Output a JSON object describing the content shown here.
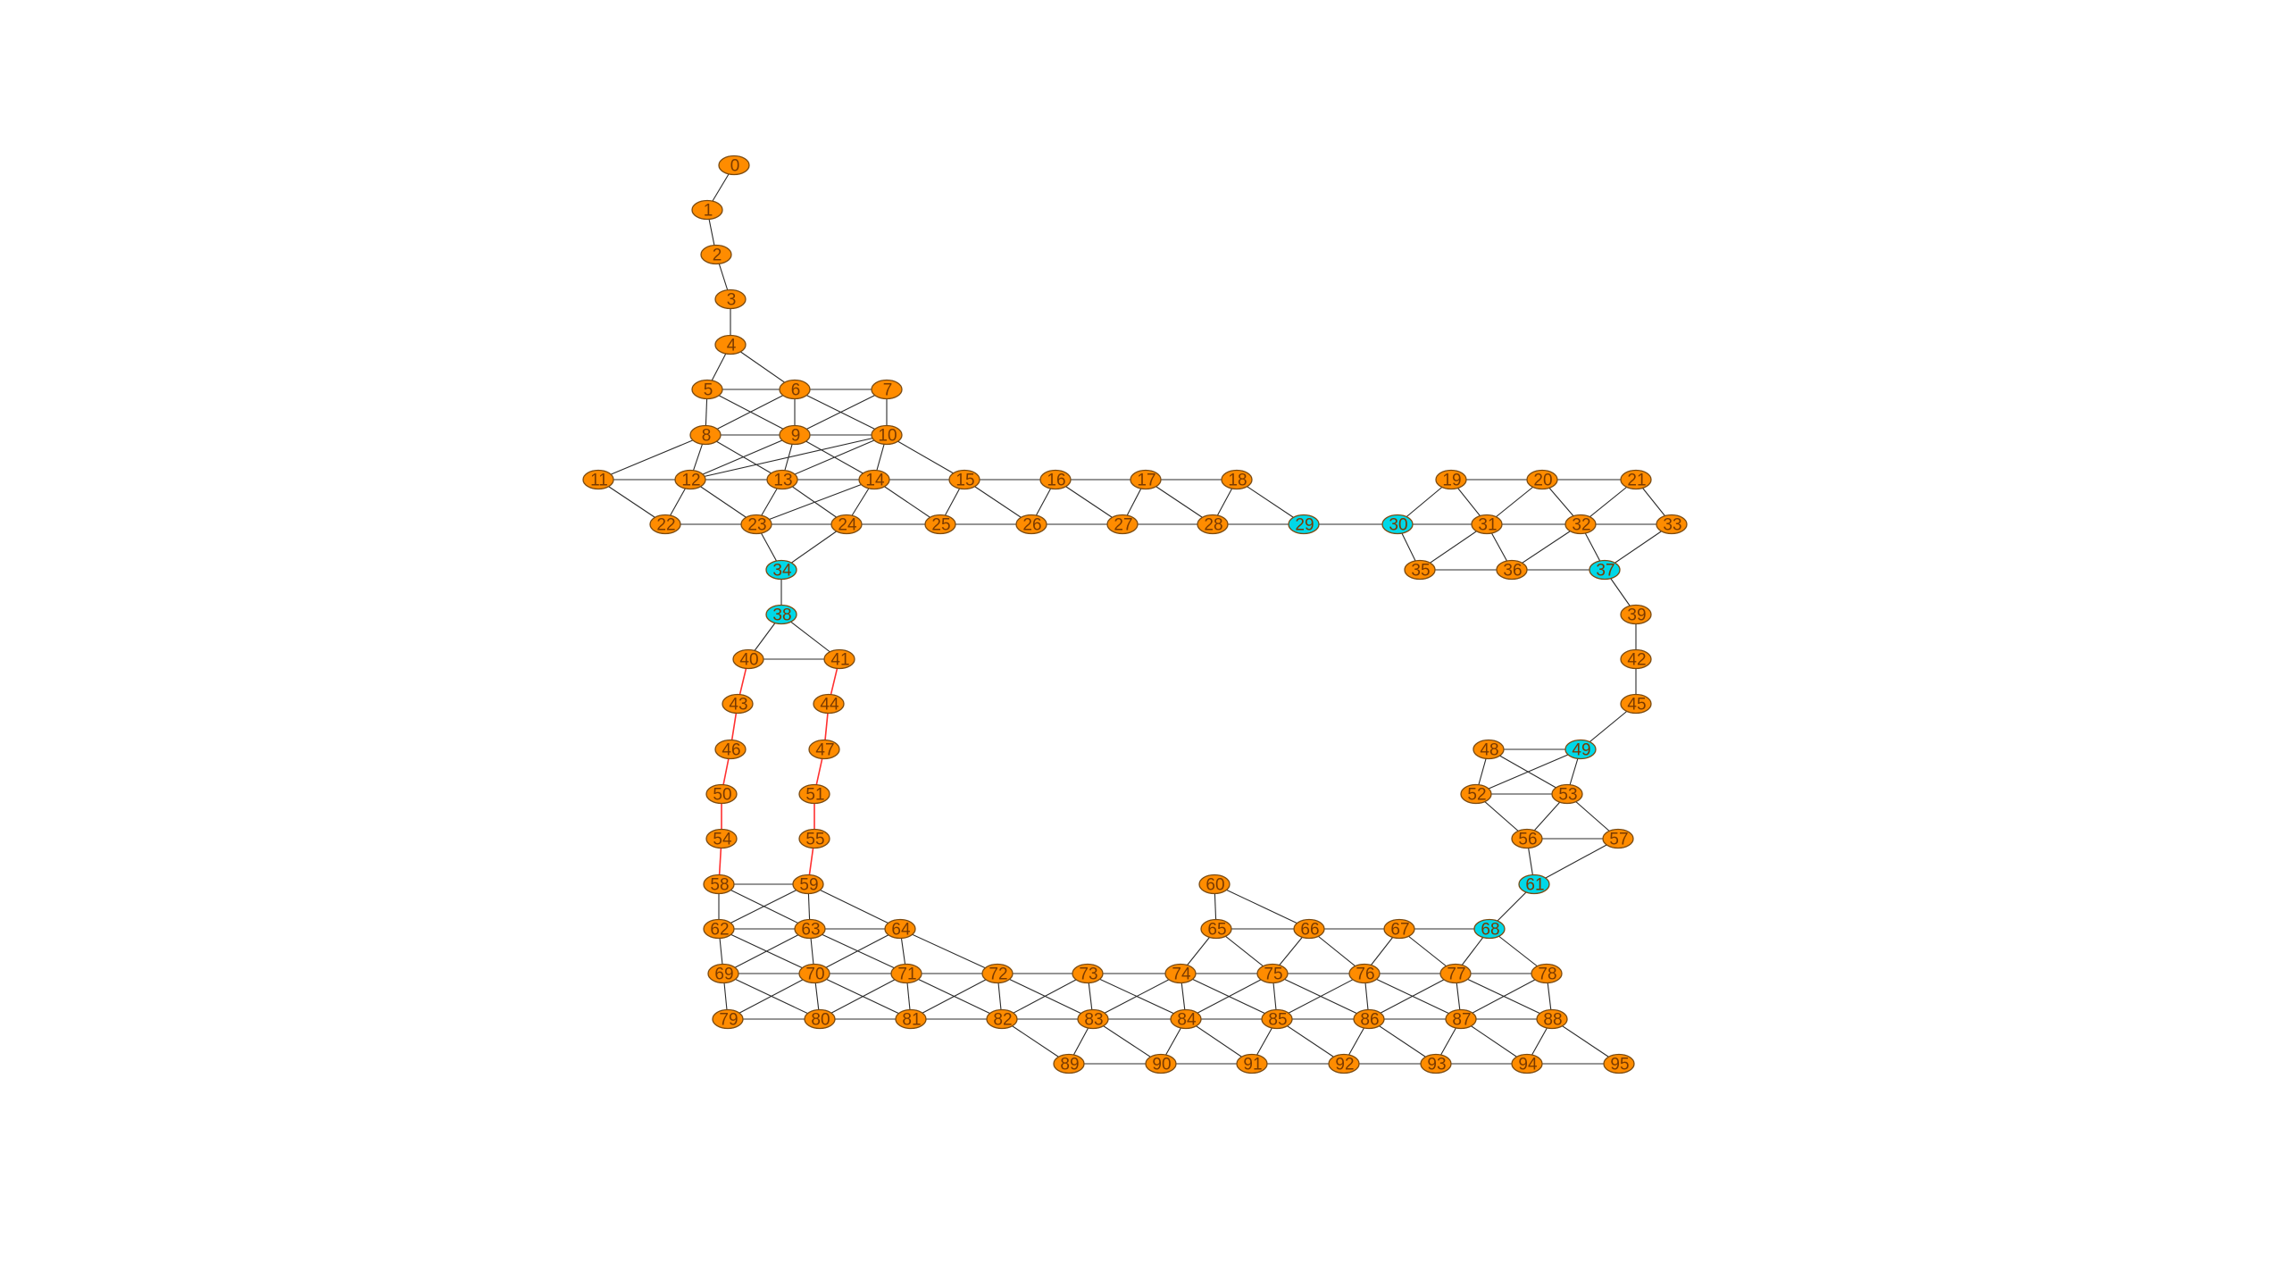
{
  "graph": {
    "colors": {
      "node_default": "#ff8c00",
      "node_highlight": "#00d8e8",
      "edge_default": "#2b2b2b",
      "edge_highlight": "#ff3030"
    },
    "nodes": [
      {
        "id": "0",
        "label": "0",
        "group": "default"
      },
      {
        "id": "1",
        "label": "1",
        "group": "default"
      },
      {
        "id": "2",
        "label": "2",
        "group": "default"
      },
      {
        "id": "3",
        "label": "3",
        "group": "default"
      },
      {
        "id": "4",
        "label": "4",
        "group": "default"
      },
      {
        "id": "5",
        "label": "5",
        "group": "default"
      },
      {
        "id": "6",
        "label": "6",
        "group": "default"
      },
      {
        "id": "7",
        "label": "7",
        "group": "default"
      },
      {
        "id": "8",
        "label": "8",
        "group": "default"
      },
      {
        "id": "9",
        "label": "9",
        "group": "default"
      },
      {
        "id": "10",
        "label": "10",
        "group": "default"
      },
      {
        "id": "11",
        "label": "11",
        "group": "default"
      },
      {
        "id": "12",
        "label": "12",
        "group": "default"
      },
      {
        "id": "13",
        "label": "13",
        "group": "default"
      },
      {
        "id": "14",
        "label": "14",
        "group": "default"
      },
      {
        "id": "15",
        "label": "15",
        "group": "default"
      },
      {
        "id": "16",
        "label": "16",
        "group": "default"
      },
      {
        "id": "17",
        "label": "17",
        "group": "default"
      },
      {
        "id": "18",
        "label": "18",
        "group": "default"
      },
      {
        "id": "19",
        "label": "19",
        "group": "default"
      },
      {
        "id": "20",
        "label": "20",
        "group": "default"
      },
      {
        "id": "21",
        "label": "21",
        "group": "default"
      },
      {
        "id": "22",
        "label": "22",
        "group": "default"
      },
      {
        "id": "23",
        "label": "23",
        "group": "default"
      },
      {
        "id": "24",
        "label": "24",
        "group": "default"
      },
      {
        "id": "25",
        "label": "25",
        "group": "default"
      },
      {
        "id": "26",
        "label": "26",
        "group": "default"
      },
      {
        "id": "27",
        "label": "27",
        "group": "default"
      },
      {
        "id": "28",
        "label": "28",
        "group": "default"
      },
      {
        "id": "29",
        "label": "29",
        "group": "highlight"
      },
      {
        "id": "30",
        "label": "30",
        "group": "highlight"
      },
      {
        "id": "31",
        "label": "31",
        "group": "default"
      },
      {
        "id": "32",
        "label": "32",
        "group": "default"
      },
      {
        "id": "33",
        "label": "33",
        "group": "default"
      },
      {
        "id": "34",
        "label": "34",
        "group": "highlight"
      },
      {
        "id": "35",
        "label": "35",
        "group": "default"
      },
      {
        "id": "36",
        "label": "36",
        "group": "default"
      },
      {
        "id": "37",
        "label": "37",
        "group": "highlight"
      },
      {
        "id": "38",
        "label": "38",
        "group": "highlight"
      },
      {
        "id": "39",
        "label": "39",
        "group": "default"
      },
      {
        "id": "40",
        "label": "40",
        "group": "default"
      },
      {
        "id": "41",
        "label": "41",
        "group": "default"
      },
      {
        "id": "42",
        "label": "42",
        "group": "default"
      },
      {
        "id": "43",
        "label": "43",
        "group": "default"
      },
      {
        "id": "44",
        "label": "44",
        "group": "default"
      },
      {
        "id": "45",
        "label": "45",
        "group": "default"
      },
      {
        "id": "46",
        "label": "46",
        "group": "default"
      },
      {
        "id": "47",
        "label": "47",
        "group": "default"
      },
      {
        "id": "48",
        "label": "48",
        "group": "default"
      },
      {
        "id": "49",
        "label": "49",
        "group": "highlight"
      },
      {
        "id": "50",
        "label": "50",
        "group": "default"
      },
      {
        "id": "51",
        "label": "51",
        "group": "default"
      },
      {
        "id": "52",
        "label": "52",
        "group": "default"
      },
      {
        "id": "53",
        "label": "53",
        "group": "default"
      },
      {
        "id": "54",
        "label": "54",
        "group": "default"
      },
      {
        "id": "55",
        "label": "55",
        "group": "default"
      },
      {
        "id": "56",
        "label": "56",
        "group": "default"
      },
      {
        "id": "57",
        "label": "57",
        "group": "default"
      },
      {
        "id": "58",
        "label": "58",
        "group": "default"
      },
      {
        "id": "59",
        "label": "59",
        "group": "default"
      },
      {
        "id": "60",
        "label": "60",
        "group": "default"
      },
      {
        "id": "61",
        "label": "61",
        "group": "highlight"
      },
      {
        "id": "62",
        "label": "62",
        "group": "default"
      },
      {
        "id": "63",
        "label": "63",
        "group": "default"
      },
      {
        "id": "64",
        "label": "64",
        "group": "default"
      },
      {
        "id": "65",
        "label": "65",
        "group": "default"
      },
      {
        "id": "66",
        "label": "66",
        "group": "default"
      },
      {
        "id": "67",
        "label": "67",
        "group": "default"
      },
      {
        "id": "68",
        "label": "68",
        "group": "highlight"
      },
      {
        "id": "69",
        "label": "69",
        "group": "default"
      },
      {
        "id": "70",
        "label": "70",
        "group": "default"
      },
      {
        "id": "71",
        "label": "71",
        "group": "default"
      },
      {
        "id": "72",
        "label": "72",
        "group": "default"
      },
      {
        "id": "73",
        "label": "73",
        "group": "default"
      },
      {
        "id": "74",
        "label": "74",
        "group": "default"
      },
      {
        "id": "75",
        "label": "75",
        "group": "default"
      },
      {
        "id": "76",
        "label": "76",
        "group": "default"
      },
      {
        "id": "77",
        "label": "77",
        "group": "default"
      },
      {
        "id": "78",
        "label": "78",
        "group": "default"
      },
      {
        "id": "79",
        "label": "79",
        "group": "default"
      },
      {
        "id": "80",
        "label": "80",
        "group": "default"
      },
      {
        "id": "81",
        "label": "81",
        "group": "default"
      },
      {
        "id": "82",
        "label": "82",
        "group": "default"
      },
      {
        "id": "83",
        "label": "83",
        "group": "default"
      },
      {
        "id": "84",
        "label": "84",
        "group": "default"
      },
      {
        "id": "85",
        "label": "85",
        "group": "default"
      },
      {
        "id": "86",
        "label": "86",
        "group": "default"
      },
      {
        "id": "87",
        "label": "87",
        "group": "default"
      },
      {
        "id": "88",
        "label": "88",
        "group": "default"
      },
      {
        "id": "89",
        "label": "89",
        "group": "default"
      },
      {
        "id": "90",
        "label": "90",
        "group": "default"
      },
      {
        "id": "91",
        "label": "91",
        "group": "default"
      },
      {
        "id": "92",
        "label": "92",
        "group": "default"
      },
      {
        "id": "93",
        "label": "93",
        "group": "default"
      },
      {
        "id": "94",
        "label": "94",
        "group": "default"
      },
      {
        "id": "95",
        "label": "95",
        "group": "default"
      }
    ],
    "edges": [
      [
        "0",
        "1"
      ],
      [
        "1",
        "2"
      ],
      [
        "2",
        "3"
      ],
      [
        "3",
        "4"
      ],
      [
        "4",
        "5"
      ],
      [
        "4",
        "6"
      ],
      [
        "5",
        "6"
      ],
      [
        "6",
        "7"
      ],
      [
        "5",
        "8"
      ],
      [
        "5",
        "9"
      ],
      [
        "6",
        "8"
      ],
      [
        "6",
        "9"
      ],
      [
        "6",
        "10"
      ],
      [
        "7",
        "9"
      ],
      [
        "7",
        "10"
      ],
      [
        "8",
        "9"
      ],
      [
        "9",
        "10"
      ],
      [
        "8",
        "11"
      ],
      [
        "8",
        "12"
      ],
      [
        "8",
        "13"
      ],
      [
        "9",
        "12"
      ],
      [
        "9",
        "13"
      ],
      [
        "9",
        "14"
      ],
      [
        "10",
        "12"
      ],
      [
        "10",
        "13"
      ],
      [
        "10",
        "14"
      ],
      [
        "10",
        "15"
      ],
      [
        "11",
        "12"
      ],
      [
        "12",
        "13"
      ],
      [
        "13",
        "14"
      ],
      [
        "14",
        "15"
      ],
      [
        "15",
        "16"
      ],
      [
        "16",
        "17"
      ],
      [
        "17",
        "18"
      ],
      [
        "11",
        "22"
      ],
      [
        "12",
        "22"
      ],
      [
        "12",
        "23"
      ],
      [
        "13",
        "23"
      ],
      [
        "13",
        "24"
      ],
      [
        "14",
        "23"
      ],
      [
        "14",
        "24"
      ],
      [
        "14",
        "25"
      ],
      [
        "15",
        "25"
      ],
      [
        "15",
        "26"
      ],
      [
        "16",
        "26"
      ],
      [
        "16",
        "27"
      ],
      [
        "17",
        "27"
      ],
      [
        "17",
        "28"
      ],
      [
        "18",
        "28"
      ],
      [
        "18",
        "29"
      ],
      [
        "22",
        "23"
      ],
      [
        "23",
        "24"
      ],
      [
        "24",
        "25"
      ],
      [
        "25",
        "26"
      ],
      [
        "26",
        "27"
      ],
      [
        "27",
        "28"
      ],
      [
        "28",
        "29"
      ],
      [
        "29",
        "30"
      ],
      [
        "23",
        "34"
      ],
      [
        "24",
        "34"
      ],
      [
        "34",
        "38"
      ],
      [
        "38",
        "40"
      ],
      [
        "38",
        "41"
      ],
      [
        "40",
        "41"
      ],
      [
        "40",
        "43",
        "h"
      ],
      [
        "43",
        "46",
        "h"
      ],
      [
        "46",
        "50",
        "h"
      ],
      [
        "50",
        "54",
        "h"
      ],
      [
        "54",
        "58",
        "h"
      ],
      [
        "41",
        "44",
        "h"
      ],
      [
        "44",
        "47",
        "h"
      ],
      [
        "47",
        "51",
        "h"
      ],
      [
        "51",
        "55",
        "h"
      ],
      [
        "55",
        "59",
        "h"
      ],
      [
        "30",
        "19"
      ],
      [
        "30",
        "31"
      ],
      [
        "30",
        "35"
      ],
      [
        "19",
        "20"
      ],
      [
        "20",
        "21"
      ],
      [
        "19",
        "31"
      ],
      [
        "20",
        "31"
      ],
      [
        "20",
        "32"
      ],
      [
        "21",
        "32"
      ],
      [
        "21",
        "33"
      ],
      [
        "31",
        "32"
      ],
      [
        "32",
        "33"
      ],
      [
        "31",
        "35"
      ],
      [
        "31",
        "36"
      ],
      [
        "32",
        "36"
      ],
      [
        "32",
        "37"
      ],
      [
        "33",
        "37"
      ],
      [
        "35",
        "36"
      ],
      [
        "36",
        "37"
      ],
      [
        "37",
        "39"
      ],
      [
        "39",
        "42"
      ],
      [
        "42",
        "45"
      ],
      [
        "45",
        "49"
      ],
      [
        "48",
        "49"
      ],
      [
        "48",
        "52"
      ],
      [
        "48",
        "53"
      ],
      [
        "49",
        "52"
      ],
      [
        "49",
        "53"
      ],
      [
        "52",
        "53"
      ],
      [
        "52",
        "56"
      ],
      [
        "53",
        "56"
      ],
      [
        "53",
        "57"
      ],
      [
        "56",
        "57"
      ],
      [
        "56",
        "61"
      ],
      [
        "57",
        "61"
      ],
      [
        "61",
        "68"
      ],
      [
        "58",
        "59"
      ],
      [
        "58",
        "62"
      ],
      [
        "58",
        "63"
      ],
      [
        "59",
        "62"
      ],
      [
        "59",
        "63"
      ],
      [
        "59",
        "64"
      ],
      [
        "62",
        "63"
      ],
      [
        "63",
        "64"
      ],
      [
        "62",
        "69"
      ],
      [
        "62",
        "70"
      ],
      [
        "63",
        "69"
      ],
      [
        "63",
        "70"
      ],
      [
        "63",
        "71"
      ],
      [
        "64",
        "70"
      ],
      [
        "64",
        "71"
      ],
      [
        "64",
        "72"
      ],
      [
        "69",
        "70"
      ],
      [
        "70",
        "71"
      ],
      [
        "71",
        "72"
      ],
      [
        "72",
        "73"
      ],
      [
        "73",
        "74"
      ],
      [
        "74",
        "75"
      ],
      [
        "75",
        "76"
      ],
      [
        "76",
        "77"
      ],
      [
        "77",
        "78"
      ],
      [
        "69",
        "79"
      ],
      [
        "69",
        "80"
      ],
      [
        "70",
        "79"
      ],
      [
        "70",
        "80"
      ],
      [
        "70",
        "81"
      ],
      [
        "71",
        "80"
      ],
      [
        "71",
        "81"
      ],
      [
        "71",
        "82"
      ],
      [
        "72",
        "81"
      ],
      [
        "72",
        "82"
      ],
      [
        "72",
        "83"
      ],
      [
        "73",
        "82"
      ],
      [
        "73",
        "83"
      ],
      [
        "73",
        "84"
      ],
      [
        "74",
        "83"
      ],
      [
        "74",
        "84"
      ],
      [
        "74",
        "85"
      ],
      [
        "75",
        "84"
      ],
      [
        "75",
        "85"
      ],
      [
        "75",
        "86"
      ],
      [
        "76",
        "85"
      ],
      [
        "76",
        "86"
      ],
      [
        "76",
        "87"
      ],
      [
        "77",
        "86"
      ],
      [
        "77",
        "87"
      ],
      [
        "77",
        "88"
      ],
      [
        "78",
        "87"
      ],
      [
        "78",
        "88"
      ],
      [
        "79",
        "80"
      ],
      [
        "80",
        "81"
      ],
      [
        "81",
        "82"
      ],
      [
        "82",
        "83"
      ],
      [
        "83",
        "84"
      ],
      [
        "84",
        "85"
      ],
      [
        "85",
        "86"
      ],
      [
        "86",
        "87"
      ],
      [
        "87",
        "88"
      ],
      [
        "82",
        "89"
      ],
      [
        "83",
        "89"
      ],
      [
        "83",
        "90"
      ],
      [
        "84",
        "90"
      ],
      [
        "84",
        "91"
      ],
      [
        "85",
        "91"
      ],
      [
        "85",
        "92"
      ],
      [
        "86",
        "92"
      ],
      [
        "86",
        "93"
      ],
      [
        "87",
        "93"
      ],
      [
        "87",
        "94"
      ],
      [
        "88",
        "94"
      ],
      [
        "88",
        "95"
      ],
      [
        "89",
        "90"
      ],
      [
        "90",
        "91"
      ],
      [
        "91",
        "92"
      ],
      [
        "92",
        "93"
      ],
      [
        "93",
        "94"
      ],
      [
        "94",
        "95"
      ],
      [
        "60",
        "65"
      ],
      [
        "60",
        "66"
      ],
      [
        "65",
        "66"
      ],
      [
        "66",
        "67"
      ],
      [
        "67",
        "68"
      ],
      [
        "65",
        "74"
      ],
      [
        "65",
        "75"
      ],
      [
        "66",
        "75"
      ],
      [
        "66",
        "76"
      ],
      [
        "67",
        "76"
      ],
      [
        "67",
        "77"
      ],
      [
        "68",
        "77"
      ],
      [
        "68",
        "78"
      ]
    ]
  }
}
